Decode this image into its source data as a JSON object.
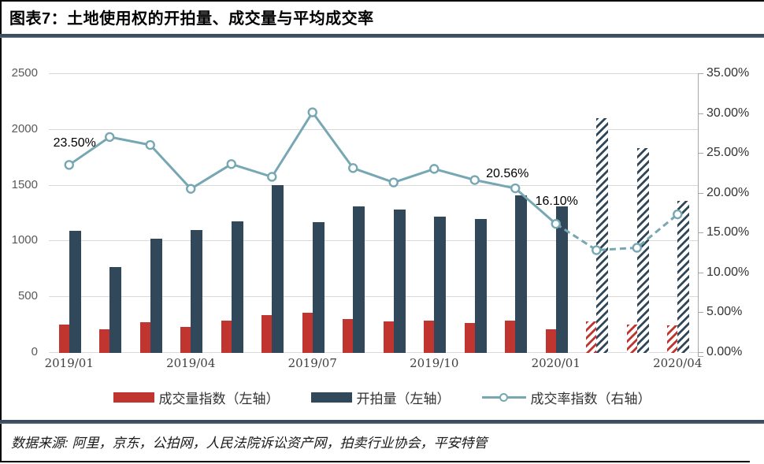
{
  "header": {
    "title": "图表7：土地使用权的开拍量、成交量与平均成交率"
  },
  "footer": {
    "source": "数据来源: 阿里，京东，公拍网，人民法院诉讼资产网，拍卖行业协会，平安特管"
  },
  "colors": {
    "volume_bar": "#C13530",
    "auction_bar": "#31485A",
    "rate_line": "#76A7B2",
    "gridline": "#D9D9D9",
    "right_axis": "#A6A6A6"
  },
  "chart_data": {
    "type": "bar",
    "subtype": "combo-bar-line",
    "categories": [
      "2019/01",
      "2019/02",
      "2019/03",
      "2019/04",
      "2019/05",
      "2019/06",
      "2019/07",
      "2019/08",
      "2019/09",
      "2019/10",
      "2019/11",
      "2019/12",
      "2020/01",
      "2020/02",
      "2020/03",
      "2020/04"
    ],
    "x_axis_tick_labels": [
      "2019/01",
      "2019/04",
      "2019/07",
      "2019/10",
      "2020/01",
      "2020/04"
    ],
    "left_axis": {
      "min": 0,
      "max": 2500,
      "ticks": [
        0,
        500,
        1000,
        1500,
        2000,
        2500
      ]
    },
    "right_axis": {
      "min": 0,
      "max": 35,
      "ticks": [
        "0.00%",
        "5.00%",
        "10.00%",
        "15.00%",
        "20.00%",
        "25.00%",
        "30.00%",
        "35.00%"
      ]
    },
    "grid": true,
    "legend_position": "bottom",
    "series": [
      {
        "name": "成交量指数（左轴）",
        "type": "bar",
        "axis": "left",
        "color": "#C13530",
        "values": [
          250,
          205,
          270,
          225,
          285,
          330,
          350,
          300,
          275,
          280,
          260,
          280,
          205,
          275,
          250,
          240
        ],
        "forecast_from_index": 13
      },
      {
        "name": "开拍量（左轴）",
        "type": "bar",
        "axis": "left",
        "color": "#31485A",
        "values": [
          1090,
          765,
          1015,
          1095,
          1170,
          1500,
          1165,
          1305,
          1280,
          1215,
          1195,
          1405,
          1305,
          2100,
          1830,
          1355
        ],
        "forecast_from_index": 13
      },
      {
        "name": "成交率指数（右轴）",
        "type": "line",
        "axis": "right",
        "color": "#76A7B2",
        "values": [
          23.5,
          27.0,
          26.0,
          20.5,
          23.6,
          22.0,
          30.1,
          23.1,
          21.3,
          23.0,
          21.6,
          20.56,
          16.1,
          12.8,
          13.1,
          17.3
        ],
        "dashed_from_index": 12
      }
    ],
    "annotations": [
      {
        "text": "23.50%",
        "month_index": 0
      },
      {
        "text": "20.56%",
        "month_index": 11
      },
      {
        "text": "16.10%",
        "month_index": 12
      }
    ]
  }
}
